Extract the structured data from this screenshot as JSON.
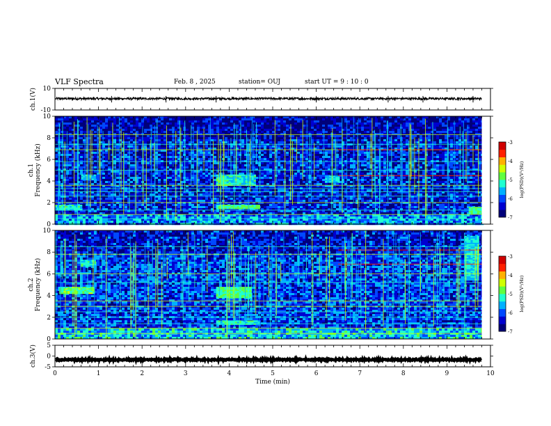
{
  "header": {
    "title": "VLF Spectra",
    "date": "Feb. 8 , 2025",
    "station": "station= OUJ",
    "start_ut": "start UT = 9 : 10 : 0"
  },
  "chart_data": [
    {
      "type": "line",
      "name_panel": "ch1-waveform",
      "ylabel": "ch.1(V)",
      "ylim": [
        -10,
        10
      ],
      "yticks": [
        "10",
        "-10"
      ],
      "series_level": 0.5,
      "series_amplitude": 1.0,
      "xlim": [
        0,
        10
      ]
    },
    {
      "type": "heatmap",
      "name_panel": "ch1-spectrogram",
      "ylabel": "Frequency (kHz)",
      "channel_label": "ch.1",
      "ylim": [
        0,
        10
      ],
      "yticks": [
        "0",
        "2",
        "4",
        "6",
        "8",
        "10"
      ],
      "xlim": [
        0,
        10
      ],
      "data_extent_min": 9.8,
      "colorbar": {
        "label": "log(PSD)(V²/Hz)",
        "ticks": [
          "-3",
          "-4",
          "-5",
          "-6",
          "-7"
        ],
        "range": [
          -7,
          -3
        ]
      },
      "bands": [
        {
          "from": 0,
          "to": 0.6,
          "kHz": [
            1.4,
            1.8
          ],
          "level": -5.3
        },
        {
          "from": 3.7,
          "to": 4.7,
          "kHz": [
            1.5,
            1.8
          ],
          "level": -5.0
        },
        {
          "from": 0.6,
          "to": 0.9,
          "kHz": [
            4.2,
            4.6
          ],
          "level": -5.5
        },
        {
          "from": 3.7,
          "to": 4.6,
          "kHz": [
            3.6,
            4.6
          ],
          "level": -5.3
        },
        {
          "from": 6.2,
          "to": 6.5,
          "kHz": [
            3.9,
            4.5
          ],
          "level": -5.4
        },
        {
          "from": 9.5,
          "to": 9.8,
          "kHz": [
            1.0,
            1.6
          ],
          "level": -5.0
        }
      ],
      "tones_kHz": [
        0.5,
        0.9,
        1.3,
        2.0,
        2.6,
        3.0,
        3.3,
        3.6,
        5.0,
        5.8,
        6.9,
        7.4,
        8.3
      ],
      "red_tones_kHz": [
        6.9,
        4.5
      ],
      "base_level": -6.3
    },
    {
      "type": "heatmap",
      "name_panel": "ch2-spectrogram",
      "ylabel": "Frequency (kHz)",
      "channel_label": "ch.2",
      "ylim": [
        0,
        10
      ],
      "yticks": [
        "0",
        "2",
        "4",
        "6",
        "8",
        "10"
      ],
      "xlim": [
        0,
        10
      ],
      "data_extent_min": 9.8,
      "colorbar": {
        "label": "log(PSD)(V²/Hz)",
        "ticks": [
          "-3",
          "-4",
          "-5",
          "-6",
          "-7"
        ],
        "range": [
          -7,
          -3
        ]
      },
      "bands": [
        {
          "from": 0.1,
          "to": 0.9,
          "kHz": [
            4.2,
            4.8
          ],
          "level": -4.9
        },
        {
          "from": 3.7,
          "to": 4.5,
          "kHz": [
            3.8,
            4.8
          ],
          "level": -5.0
        },
        {
          "from": 0.6,
          "to": 0.9,
          "kHz": [
            6.7,
            7.3
          ],
          "level": -5.3
        },
        {
          "from": 3.7,
          "to": 4.7,
          "kHz": [
            1.4,
            1.7
          ],
          "level": -5.2
        },
        {
          "from": 9.4,
          "to": 9.7,
          "kHz": [
            5.5,
            9.5
          ],
          "level": -5.4
        }
      ],
      "tones_kHz": [
        0.5,
        1.0,
        1.4,
        2.0,
        2.5,
        3.0,
        3.5,
        5.2,
        6.0,
        7.8,
        8.5
      ],
      "red_tones_kHz": [
        6.9,
        8.2
      ],
      "base_level": -6.1
    },
    {
      "type": "line",
      "name_panel": "ch3-waveform",
      "ylabel": "ch.3(V)",
      "ylim": [
        -5,
        5
      ],
      "yticks": [
        "5",
        "0",
        "-5"
      ],
      "series_level": -1.7,
      "series_amplitude": 0.3,
      "xlim": [
        0,
        10
      ],
      "xlabel": "Time (min)",
      "xticks": [
        "0",
        "1",
        "2",
        "3",
        "4",
        "5",
        "6",
        "7",
        "8",
        "9",
        "10"
      ]
    }
  ],
  "colors": {
    "colormap": [
      "#00007a",
      "#0000d0",
      "#0048ff",
      "#00b0ff",
      "#20ffd0",
      "#60ff40",
      "#d0ff00",
      "#ffb000",
      "#ff2000",
      "#d00000",
      "#ffffff"
    ]
  }
}
